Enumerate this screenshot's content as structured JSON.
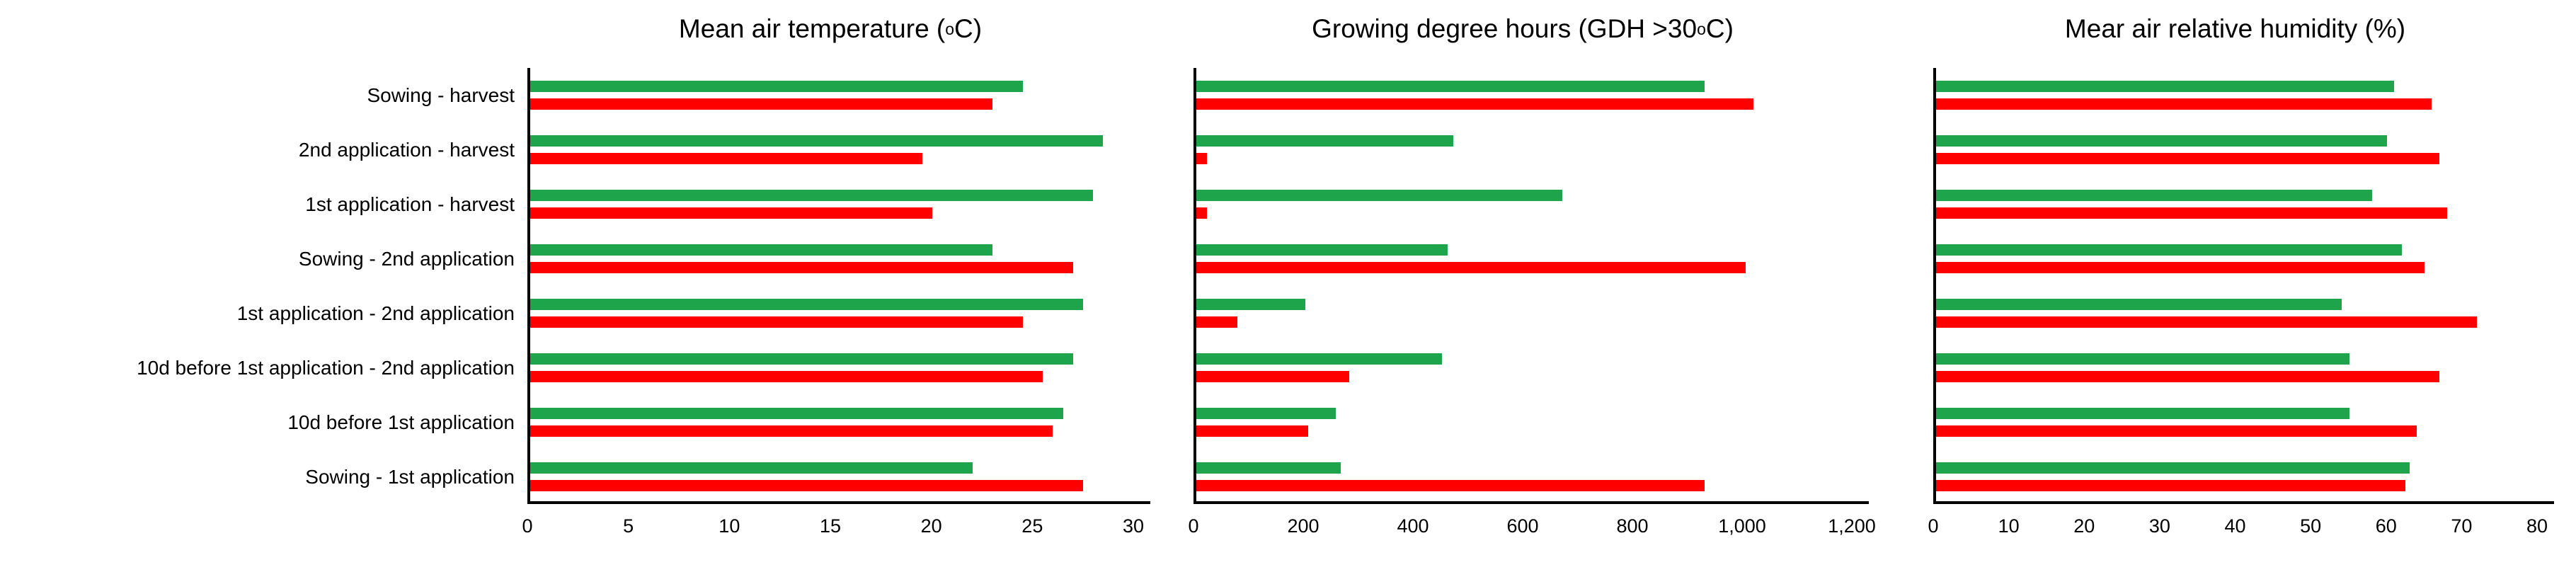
{
  "figure": {
    "background": "#ffffff"
  },
  "colors": {
    "series_green": "#1EA44A",
    "series_red": "#FE0000",
    "axis": "#000000",
    "text": "#000000"
  },
  "categories": [
    "Sowing - harvest",
    "2nd application - harvest",
    "1st application - harvest",
    "Sowing - 2nd application",
    "1st application - 2nd application",
    "10d before 1st application - 2nd application",
    "10d before 1st application",
    "Sowing - 1st application"
  ],
  "chart_data": [
    {
      "type": "bar",
      "orientation": "horizontal",
      "title": "Mean air temperature (oC)",
      "title_parts": {
        "pre": "Mean air temperature (",
        "sup": "o",
        "post": "C)"
      },
      "categories": [
        "Sowing - harvest",
        "2nd application - harvest",
        "1st application - harvest",
        "Sowing - 2nd application",
        "1st application - 2nd application",
        "10d before 1st application - 2nd application",
        "10d before 1st application",
        "Sowing - 1st application"
      ],
      "series": [
        {
          "name": "green",
          "color": "#1EA44A",
          "values": [
            24.5,
            28.5,
            28,
            23,
            27.5,
            27,
            26.5,
            22
          ]
        },
        {
          "name": "red",
          "color": "#FE0000",
          "values": [
            23,
            19.5,
            20,
            27,
            24.5,
            25.5,
            26,
            27.5
          ]
        }
      ],
      "xlim": [
        0,
        30
      ],
      "xticks": [
        0,
        5,
        10,
        15,
        20,
        25,
        30
      ],
      "xtick_labels": [
        "0",
        "5",
        "10",
        "15",
        "20",
        "25",
        "30"
      ],
      "grid": false,
      "legend": "none"
    },
    {
      "type": "bar",
      "orientation": "horizontal",
      "title": "Growing degree hours (GDH >30 oC)",
      "title_parts": {
        "pre": "Growing degree hours (GDH >30 ",
        "sup": "o",
        "post": "C)"
      },
      "categories": [
        "Sowing - harvest",
        "2nd application - harvest",
        "1st application - harvest",
        "Sowing - 2nd application",
        "1st application - 2nd application",
        "10d before 1st application - 2nd application",
        "10d before 1st application",
        "Sowing - 1st application"
      ],
      "series": [
        {
          "name": "green",
          "color": "#1EA44A",
          "values": [
            930,
            470,
            670,
            460,
            200,
            450,
            255,
            265
          ]
        },
        {
          "name": "red",
          "color": "#FE0000",
          "values": [
            1020,
            20,
            20,
            1005,
            75,
            280,
            205,
            930
          ]
        }
      ],
      "xlim": [
        0,
        1200
      ],
      "xticks": [
        0,
        200,
        400,
        600,
        800,
        1000,
        1200
      ],
      "xtick_labels": [
        "0",
        "200",
        "400",
        "600",
        "800",
        "1,000",
        "1,200"
      ],
      "grid": false,
      "legend": "none"
    },
    {
      "type": "bar",
      "orientation": "horizontal",
      "title": "Mear air relative humidity (%)",
      "title_parts": {
        "pre": "Mear air relative humidity (%)",
        "sup": "",
        "post": ""
      },
      "categories": [
        "Sowing - harvest",
        "2nd application - harvest",
        "1st application - harvest",
        "Sowing - 2nd application",
        "1st application - 2nd application",
        "10d before 1st application - 2nd application",
        "10d before 1st application",
        "Sowing - 1st application"
      ],
      "series": [
        {
          "name": "green",
          "color": "#1EA44A",
          "values": [
            61,
            60,
            58,
            62,
            54,
            55,
            55,
            63
          ]
        },
        {
          "name": "red",
          "color": "#FE0000",
          "values": [
            66,
            67,
            68,
            65,
            72,
            67,
            64,
            62.5
          ]
        }
      ],
      "xlim": [
        0,
        80
      ],
      "xticks": [
        0,
        10,
        20,
        30,
        40,
        50,
        60,
        70,
        80
      ],
      "xtick_labels": [
        "0",
        "10",
        "20",
        "30",
        "40",
        "50",
        "60",
        "70",
        "80"
      ],
      "grid": false,
      "legend": "none"
    }
  ]
}
